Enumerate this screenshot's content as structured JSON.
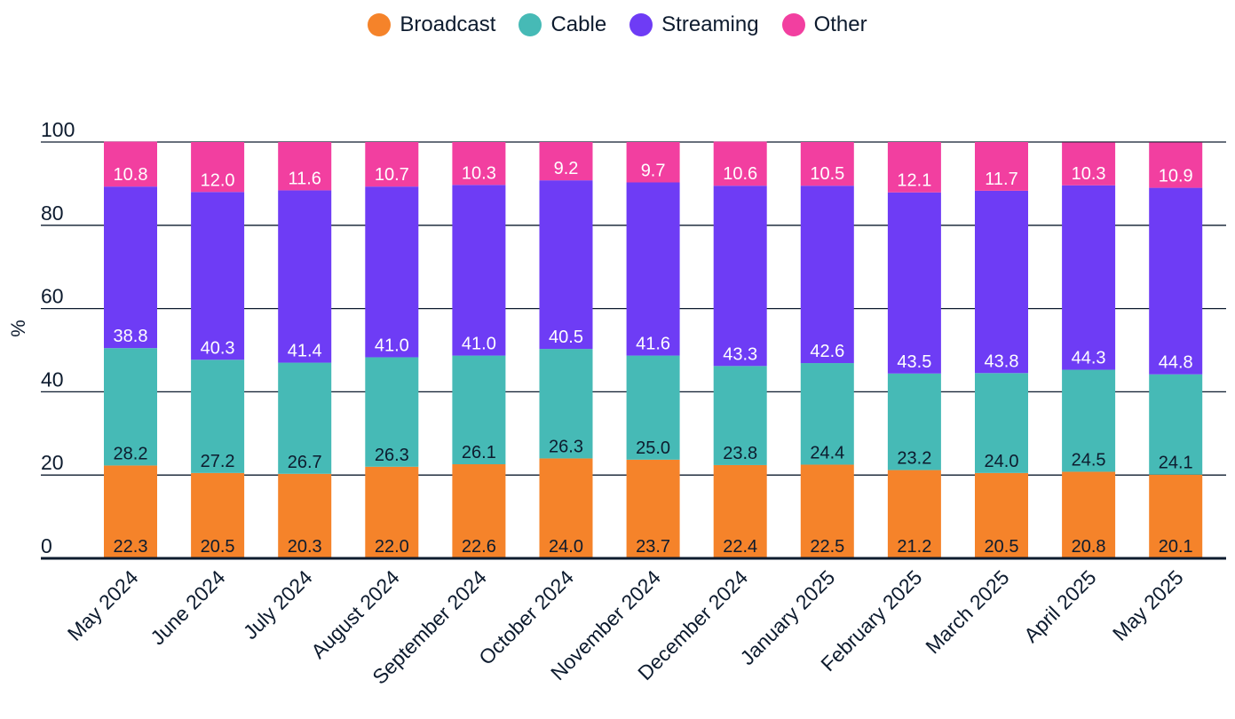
{
  "chart_data": {
    "type": "bar",
    "stacked": true,
    "title": "",
    "xlabel": "",
    "ylabel": "%",
    "ylim": [
      0,
      100
    ],
    "yticks": [
      0,
      20,
      40,
      60,
      80,
      100
    ],
    "grid": true,
    "legend_position": "top-center",
    "categories": [
      "May 2024",
      "June 2024",
      "July 2024",
      "August 2024",
      "September 2024",
      "October 2024",
      "November 2024",
      "December 2024",
      "January 2025",
      "February 2025",
      "March 2025",
      "April 2025",
      "May 2025"
    ],
    "series": [
      {
        "name": "Broadcast",
        "color": "#f5832a",
        "label_color": "#0d1b2e",
        "values": [
          22.3,
          20.5,
          20.3,
          22.0,
          22.6,
          24.0,
          23.7,
          22.4,
          22.5,
          21.2,
          20.5,
          20.8,
          20.1
        ]
      },
      {
        "name": "Cable",
        "color": "#46bab6",
        "label_color": "#0d1b2e",
        "values": [
          28.2,
          27.2,
          26.7,
          26.3,
          26.1,
          26.3,
          25.0,
          23.8,
          24.4,
          23.2,
          24.0,
          24.5,
          24.1
        ]
      },
      {
        "name": "Streaming",
        "color": "#6e3cf5",
        "label_color": "#ffffff",
        "values": [
          38.8,
          40.3,
          41.4,
          41.0,
          41.0,
          40.5,
          41.6,
          43.3,
          42.6,
          43.5,
          43.8,
          44.3,
          44.8
        ]
      },
      {
        "name": "Other",
        "color": "#f23fa0",
        "label_color": "#ffffff",
        "values": [
          10.8,
          12.0,
          11.6,
          10.7,
          10.3,
          9.2,
          9.7,
          10.6,
          10.5,
          12.1,
          11.7,
          10.3,
          10.9
        ]
      }
    ]
  }
}
